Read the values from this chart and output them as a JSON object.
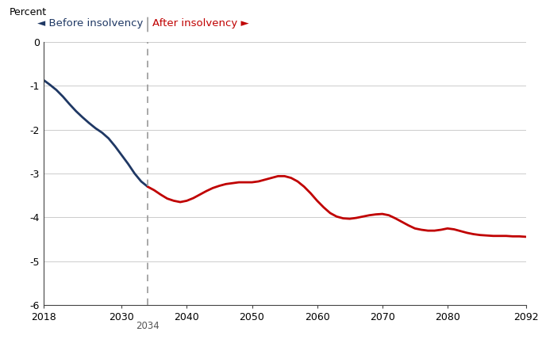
{
  "ylabel": "Percent",
  "xlim": [
    2018,
    2092
  ],
  "ylim": [
    -6,
    0
  ],
  "yticks": [
    0,
    -1,
    -2,
    -3,
    -4,
    -5,
    -6
  ],
  "xticks": [
    2018,
    2030,
    2040,
    2050,
    2060,
    2070,
    2080,
    2092
  ],
  "insolvency_year": 2034,
  "before_color": "#1f3864",
  "after_color": "#c00000",
  "before_x": [
    2018,
    2019,
    2020,
    2021,
    2022,
    2023,
    2024,
    2025,
    2026,
    2027,
    2028,
    2029,
    2030,
    2031,
    2032,
    2033,
    2034
  ],
  "before_y": [
    -0.87,
    -0.98,
    -1.1,
    -1.25,
    -1.42,
    -1.58,
    -1.72,
    -1.85,
    -1.97,
    -2.07,
    -2.2,
    -2.38,
    -2.58,
    -2.78,
    -3.0,
    -3.18,
    -3.3
  ],
  "after_x": [
    2034,
    2035,
    2036,
    2037,
    2038,
    2039,
    2040,
    2041,
    2042,
    2043,
    2044,
    2045,
    2046,
    2047,
    2048,
    2049,
    2050,
    2051,
    2052,
    2053,
    2054,
    2055,
    2056,
    2057,
    2058,
    2059,
    2060,
    2061,
    2062,
    2063,
    2064,
    2065,
    2066,
    2067,
    2068,
    2069,
    2070,
    2071,
    2072,
    2073,
    2074,
    2075,
    2076,
    2077,
    2078,
    2079,
    2080,
    2081,
    2082,
    2083,
    2084,
    2085,
    2086,
    2087,
    2088,
    2089,
    2090,
    2091,
    2092
  ],
  "after_y": [
    -3.3,
    -3.38,
    -3.48,
    -3.57,
    -3.62,
    -3.65,
    -3.62,
    -3.56,
    -3.48,
    -3.4,
    -3.33,
    -3.28,
    -3.24,
    -3.22,
    -3.2,
    -3.2,
    -3.2,
    -3.18,
    -3.14,
    -3.1,
    -3.06,
    -3.06,
    -3.1,
    -3.18,
    -3.3,
    -3.45,
    -3.62,
    -3.77,
    -3.9,
    -3.98,
    -4.02,
    -4.03,
    -4.01,
    -3.98,
    -3.95,
    -3.93,
    -3.92,
    -3.95,
    -4.02,
    -4.1,
    -4.18,
    -4.25,
    -4.28,
    -4.3,
    -4.3,
    -4.28,
    -4.25,
    -4.27,
    -4.31,
    -4.35,
    -4.38,
    -4.4,
    -4.41,
    -4.42,
    -4.42,
    -4.42,
    -4.43,
    -4.43,
    -4.44
  ],
  "background_color": "#ffffff",
  "grid_color": "#cccccc",
  "annotation_2034": "2034",
  "label_before": "◄ Before insolvency",
  "label_after": "After insolvency ►",
  "dashed_color": "#999999"
}
